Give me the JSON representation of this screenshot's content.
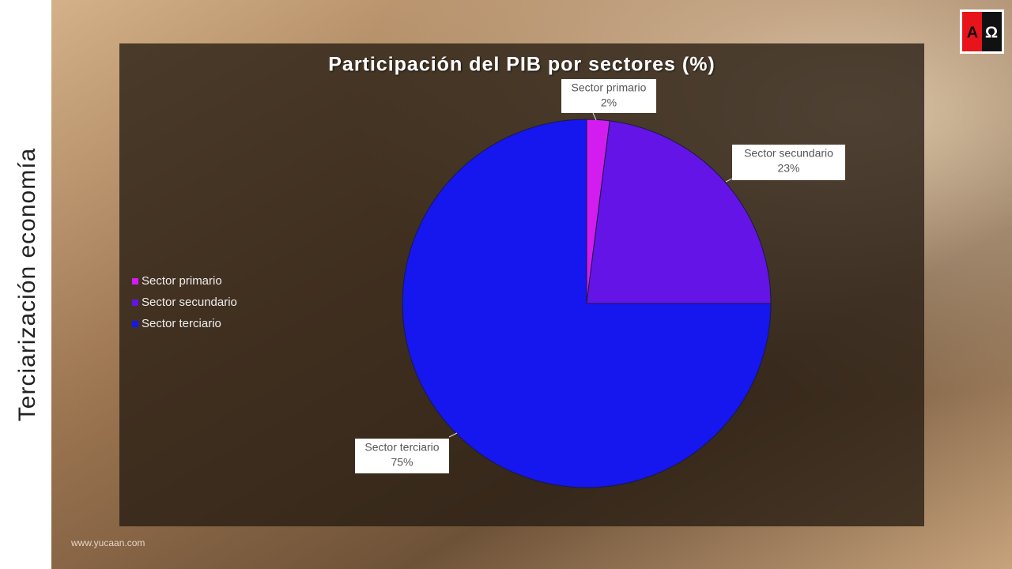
{
  "slide_title": "Terciarización economía",
  "footer": "www.yucaan.com",
  "logo": {
    "left": "A",
    "right": "Ω"
  },
  "chart_data": {
    "type": "pie",
    "title": "Participación del PIB por sectores (%)",
    "categories": [
      "Sector primario",
      "Sector secundario",
      "Sector terciario"
    ],
    "values": [
      2,
      23,
      75
    ],
    "value_labels": [
      "2%",
      "23%",
      "75%"
    ],
    "colors": [
      "#d31cf0",
      "#6414e6",
      "#1616ee"
    ],
    "legend": "left"
  }
}
